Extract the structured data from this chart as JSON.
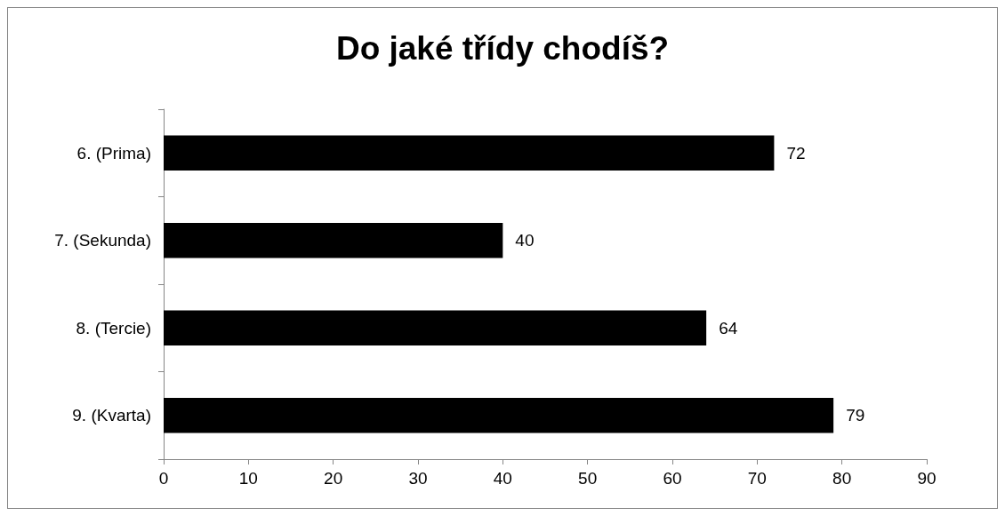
{
  "chart_data": {
    "type": "bar",
    "title": "Do jaké třídy chodíš?",
    "orientation": "horizontal",
    "categories": [
      "6. (Prima)",
      "7. (Sekunda)",
      "8. (Tercie)",
      "9. (Kvarta)"
    ],
    "values": [
      72,
      40,
      64,
      79
    ],
    "color": "#000000",
    "xlim": [
      0,
      90
    ],
    "xticks": [
      0,
      10,
      20,
      30,
      40,
      50,
      60,
      70,
      80,
      90
    ],
    "grid": false,
    "data_labels": true
  }
}
